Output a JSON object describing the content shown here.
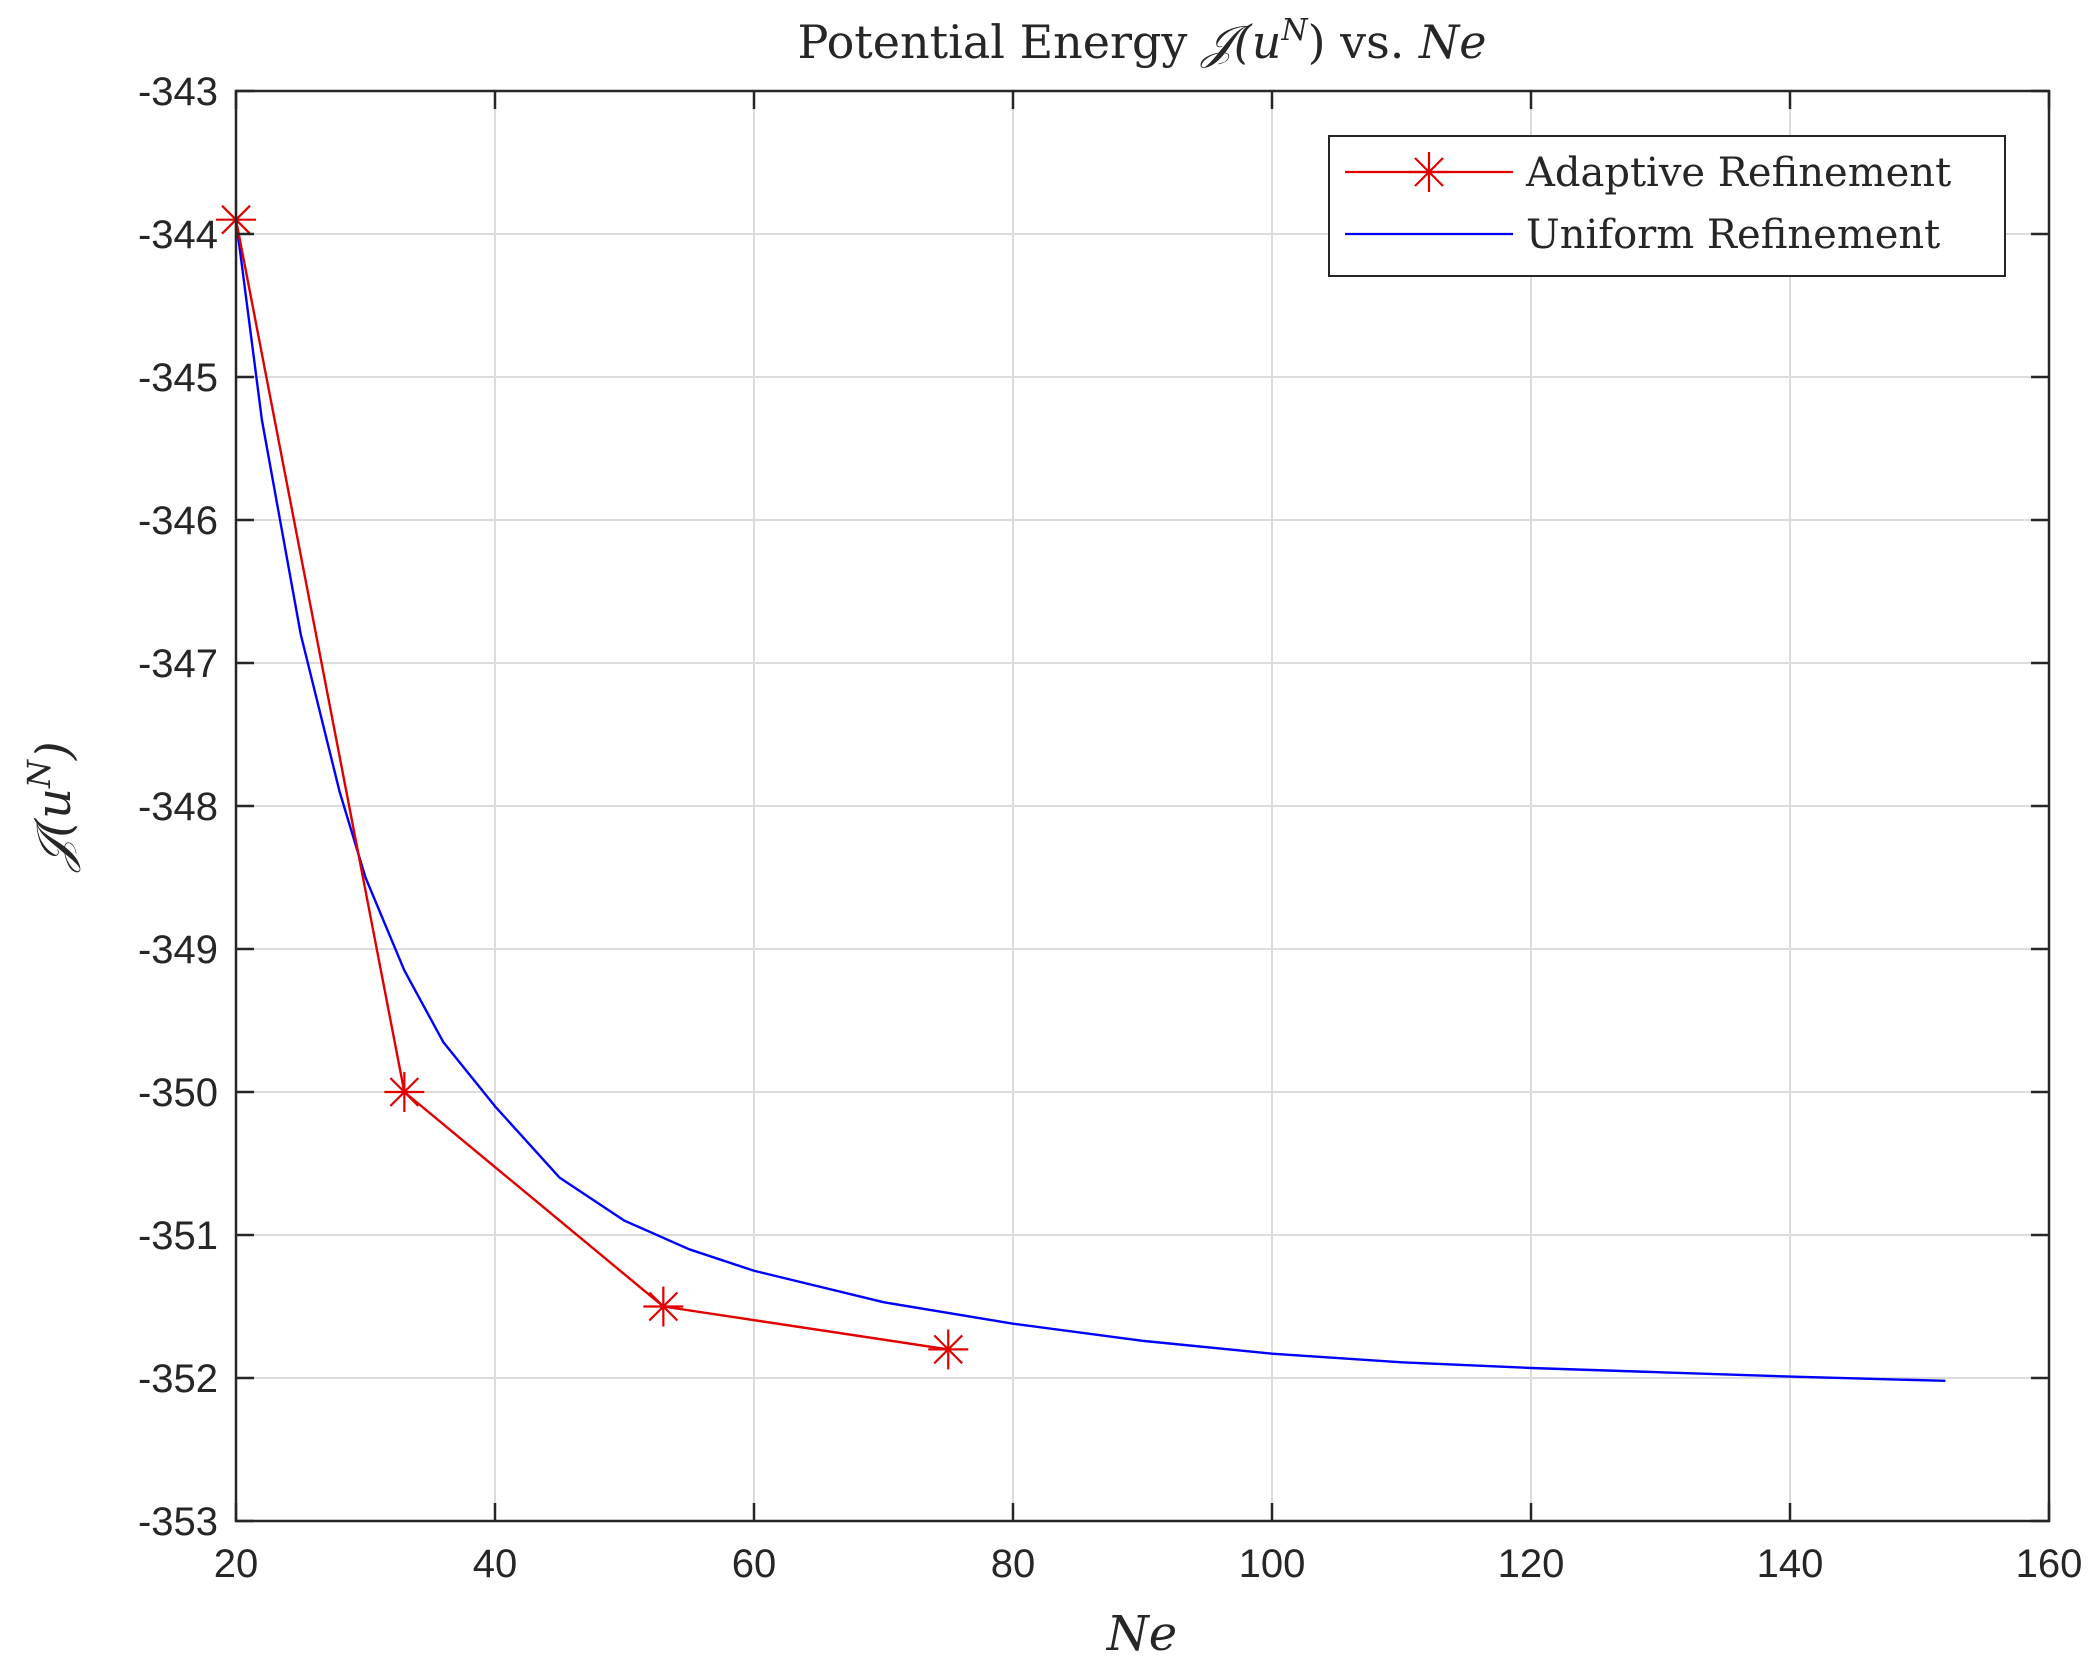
{
  "chart_data": {
    "type": "line",
    "title": "Potential Energy 𝒥(u^N) vs. Ne",
    "title_parts": {
      "prefix": "Potential Energy ",
      "func": "𝒥(u",
      "sup": "N",
      "suffix": ") vs. ",
      "var": "Ne"
    },
    "xlabel": "Ne",
    "ylabel": "𝒥(u^N)",
    "ylabel_parts": {
      "func": "𝒥(u",
      "sup": "N",
      "close": ")"
    },
    "xlim": [
      20,
      160
    ],
    "ylim": [
      -353,
      -343
    ],
    "xticks": [
      20,
      40,
      60,
      80,
      100,
      120,
      140,
      160
    ],
    "yticks": [
      -343,
      -344,
      -345,
      -346,
      -347,
      -348,
      -349,
      -350,
      -351,
      -352,
      -353
    ],
    "grid": true,
    "legend_position": "top-right",
    "series": [
      {
        "name": "Adaptive Refinement",
        "color": "#e00000",
        "marker": "asterisk",
        "x": [
          20,
          33,
          53,
          75
        ],
        "y": [
          -343.9,
          -350.0,
          -351.5,
          -351.8
        ]
      },
      {
        "name": "Uniform Refinement",
        "color": "#0000ff",
        "marker": "none",
        "x": [
          20,
          22,
          25,
          28,
          30,
          33,
          36,
          40,
          45,
          50,
          55,
          60,
          70,
          80,
          90,
          100,
          110,
          120,
          130,
          140,
          152
        ],
        "y": [
          -343.9,
          -345.3,
          -346.8,
          -347.9,
          -348.5,
          -349.15,
          -349.65,
          -350.1,
          -350.6,
          -350.9,
          -351.1,
          -351.25,
          -351.47,
          -351.62,
          -351.74,
          -351.83,
          -351.89,
          -351.93,
          -351.96,
          -351.99,
          -352.02
        ]
      }
    ]
  }
}
